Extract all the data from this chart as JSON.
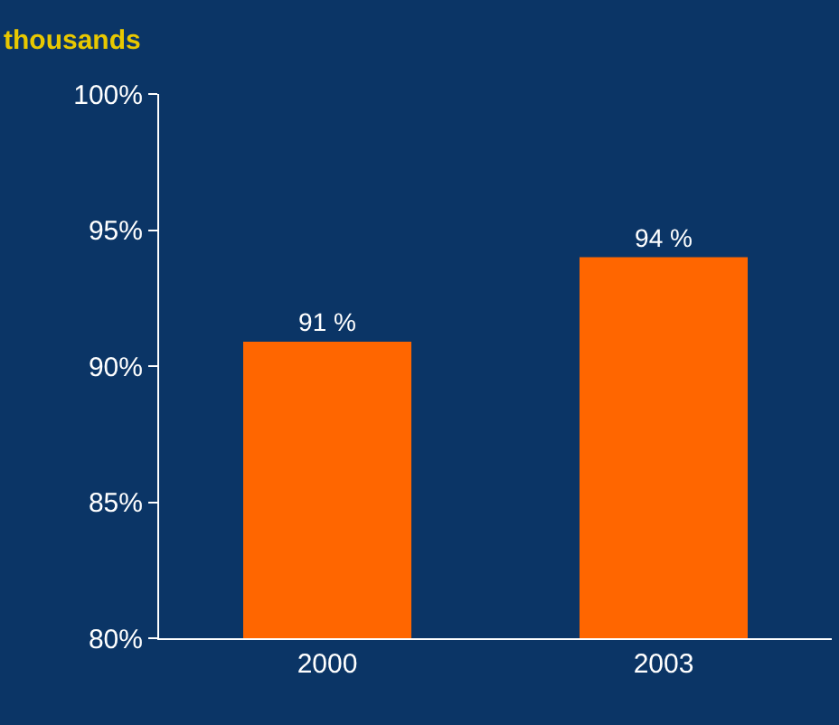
{
  "chart_data": {
    "type": "bar",
    "ylabel": "thousands",
    "categories": [
      "2000",
      "2003"
    ],
    "values": [
      90.9,
      94.0
    ],
    "value_labels": [
      "91 %",
      "94 %"
    ],
    "color": "#ff6600",
    "ylim": [
      80,
      100
    ],
    "yticks": [
      {
        "value": 80,
        "label": "80%"
      },
      {
        "value": 85,
        "label": "85%"
      },
      {
        "value": 90,
        "label": "90%"
      },
      {
        "value": 95,
        "label": "95%"
      },
      {
        "value": 100,
        "label": "100%"
      }
    ],
    "grid": false,
    "legend": false
  }
}
